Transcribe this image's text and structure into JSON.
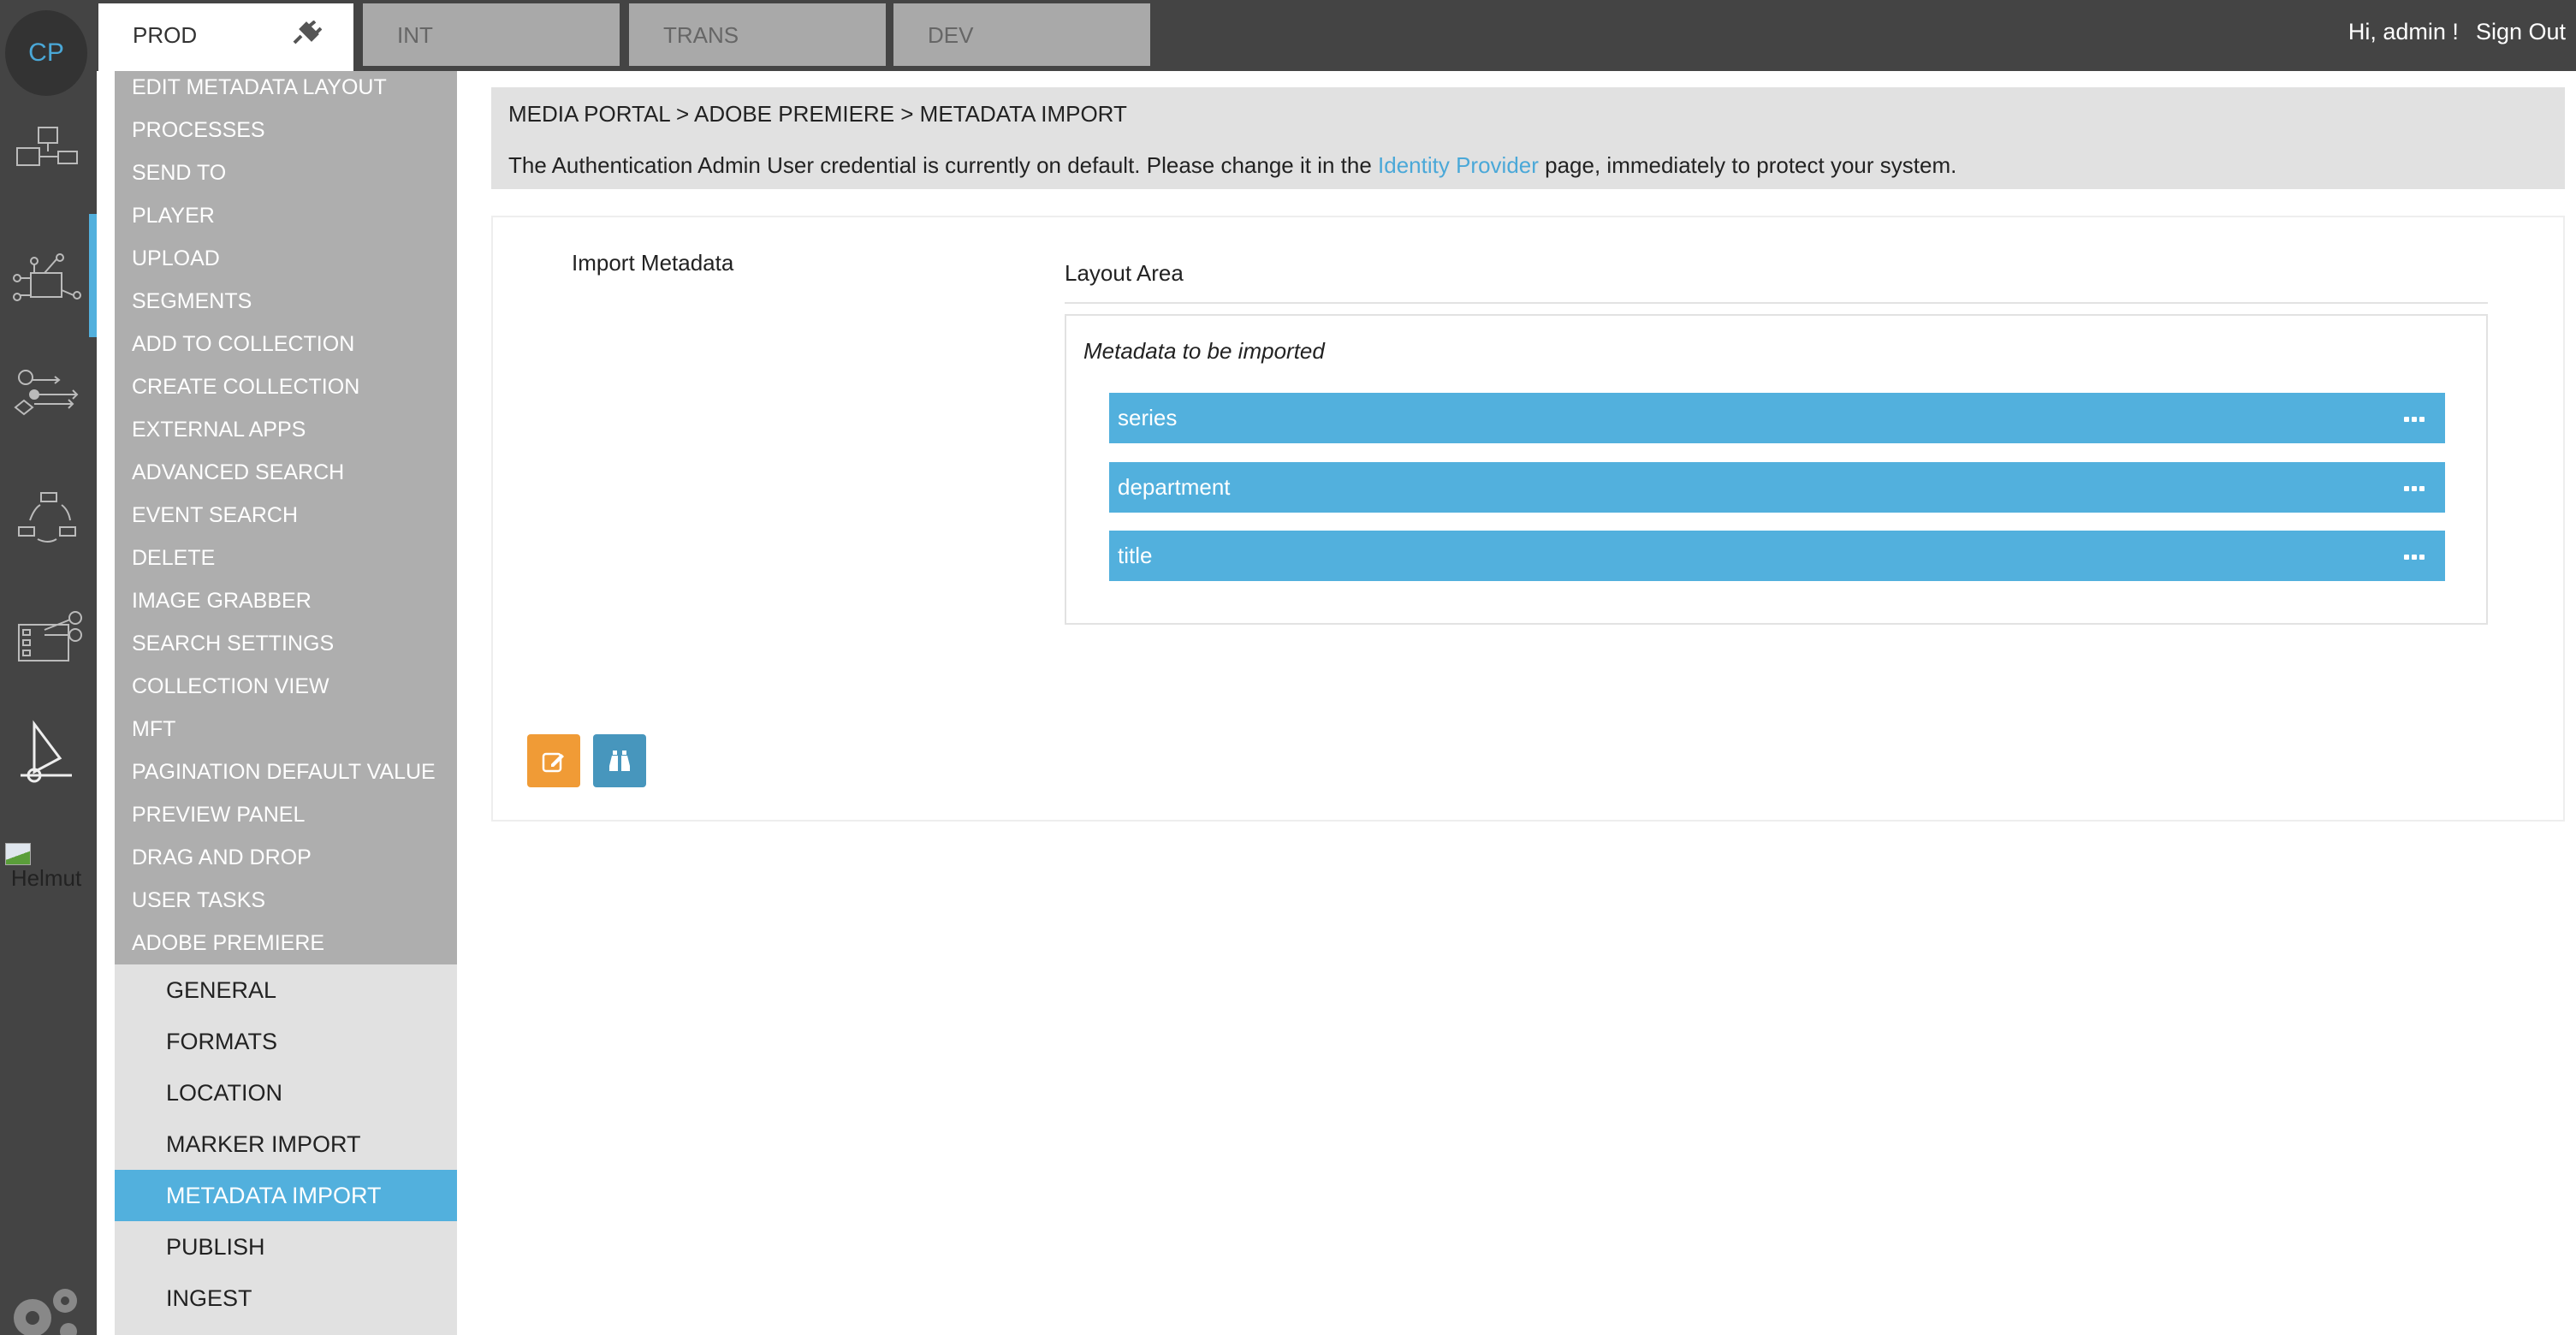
{
  "rail": {
    "logo": "CP",
    "broken_image_alt": "Helmut",
    "icons": [
      "cubes-icon",
      "workflow-touch-icon",
      "process-flow-icon",
      "cycle-icon",
      "video-editing-icon",
      "player-icon"
    ],
    "settings_icon": "gears-icon"
  },
  "tabs": [
    {
      "label": "PROD",
      "active": true,
      "icon": "plug-icon"
    },
    {
      "label": "INT"
    },
    {
      "label": "TRANS"
    },
    {
      "label": "DEV"
    }
  ],
  "user": {
    "greeting": "Hi, admin !",
    "signout": "Sign Out"
  },
  "menu": {
    "items": [
      "EDIT METADATA LAYOUT",
      "PROCESSES",
      "SEND TO",
      "PLAYER",
      "UPLOAD",
      "SEGMENTS",
      "ADD TO COLLECTION",
      "CREATE COLLECTION",
      "EXTERNAL APPS",
      "ADVANCED SEARCH",
      "EVENT SEARCH",
      "DELETE",
      "IMAGE GRABBER",
      "SEARCH SETTINGS",
      "COLLECTION VIEW",
      "MFT",
      "PAGINATION DEFAULT VALUE",
      "PREVIEW PANEL",
      "DRAG AND DROP",
      "USER TASKS",
      "ADOBE PREMIERE"
    ],
    "subitems": [
      "GENERAL",
      "FORMATS",
      "LOCATION",
      "MARKER IMPORT",
      "METADATA IMPORT",
      "PUBLISH",
      "INGEST"
    ],
    "active_subitem": "METADATA IMPORT"
  },
  "breadcrumb": "MEDIA PORTAL > ADOBE PREMIERE > METADATA IMPORT",
  "warning": {
    "before": "The Authentication Admin User credential is currently on default. Please change it in the ",
    "link": "Identity Provider",
    "after": " page, immediately to protect your system."
  },
  "panel": {
    "left_title": "Import Metadata",
    "layout_title": "Layout Area",
    "box_caption": "Metadata to be imported",
    "fields": [
      "series",
      "department",
      "title"
    ],
    "edit_icon": "edit-icon",
    "search_icon": "binoculars-icon"
  },
  "colors": {
    "accent": "#52b0dd",
    "edit_button": "#f09b36",
    "search_button": "#4796bd",
    "topbar": "#444444"
  }
}
